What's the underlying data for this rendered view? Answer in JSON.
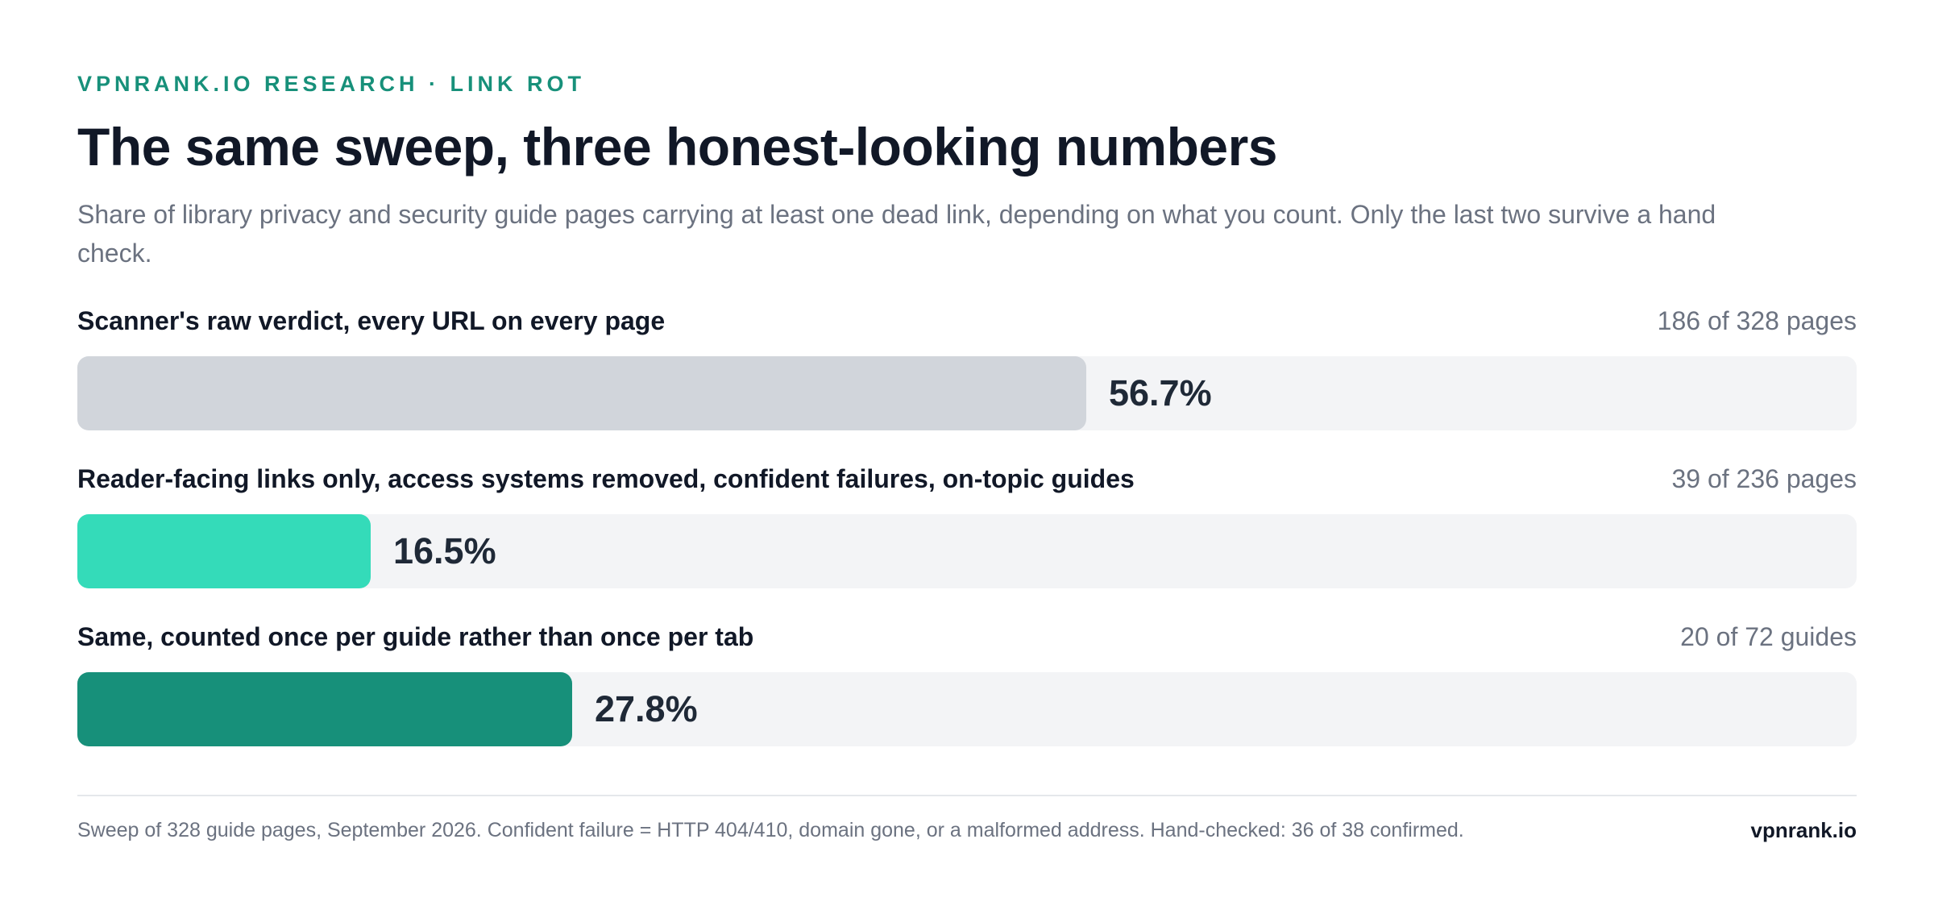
{
  "header": {
    "eyebrow": "VPNRANK.IO RESEARCH · LINK ROT",
    "title": "The same sweep, three honest-looking numbers",
    "subtitle": "Share of library privacy and security guide pages carrying at least one dead link, depending on what you count. Only the last two survive a hand check."
  },
  "chart_data": {
    "type": "bar",
    "orientation": "horizontal",
    "xlim": [
      0,
      100
    ],
    "unit": "%",
    "categories": [
      "Scanner's raw verdict, every URL on every page",
      "Reader-facing links only, access systems removed, confident failures, on-topic guides",
      "Same, counted once per guide rather than once per tab"
    ],
    "values": [
      56.7,
      16.5,
      27.8
    ],
    "value_labels": [
      "56.7%",
      "16.5%",
      "27.8%"
    ],
    "counts": [
      "186 of 328 pages",
      "39 of 236 pages",
      "20 of 72 guides"
    ],
    "colors": [
      "#d1d5db",
      "#34dbb9",
      "#17907a"
    ],
    "track_color": "#f3f4f6"
  },
  "footer": {
    "note": "Sweep of 328 guide pages, September 2026. Confident failure = HTTP 404/410, domain gone, or a malformed address. Hand-checked: 36 of 38 confirmed.",
    "brand": "vpnrank.io"
  }
}
